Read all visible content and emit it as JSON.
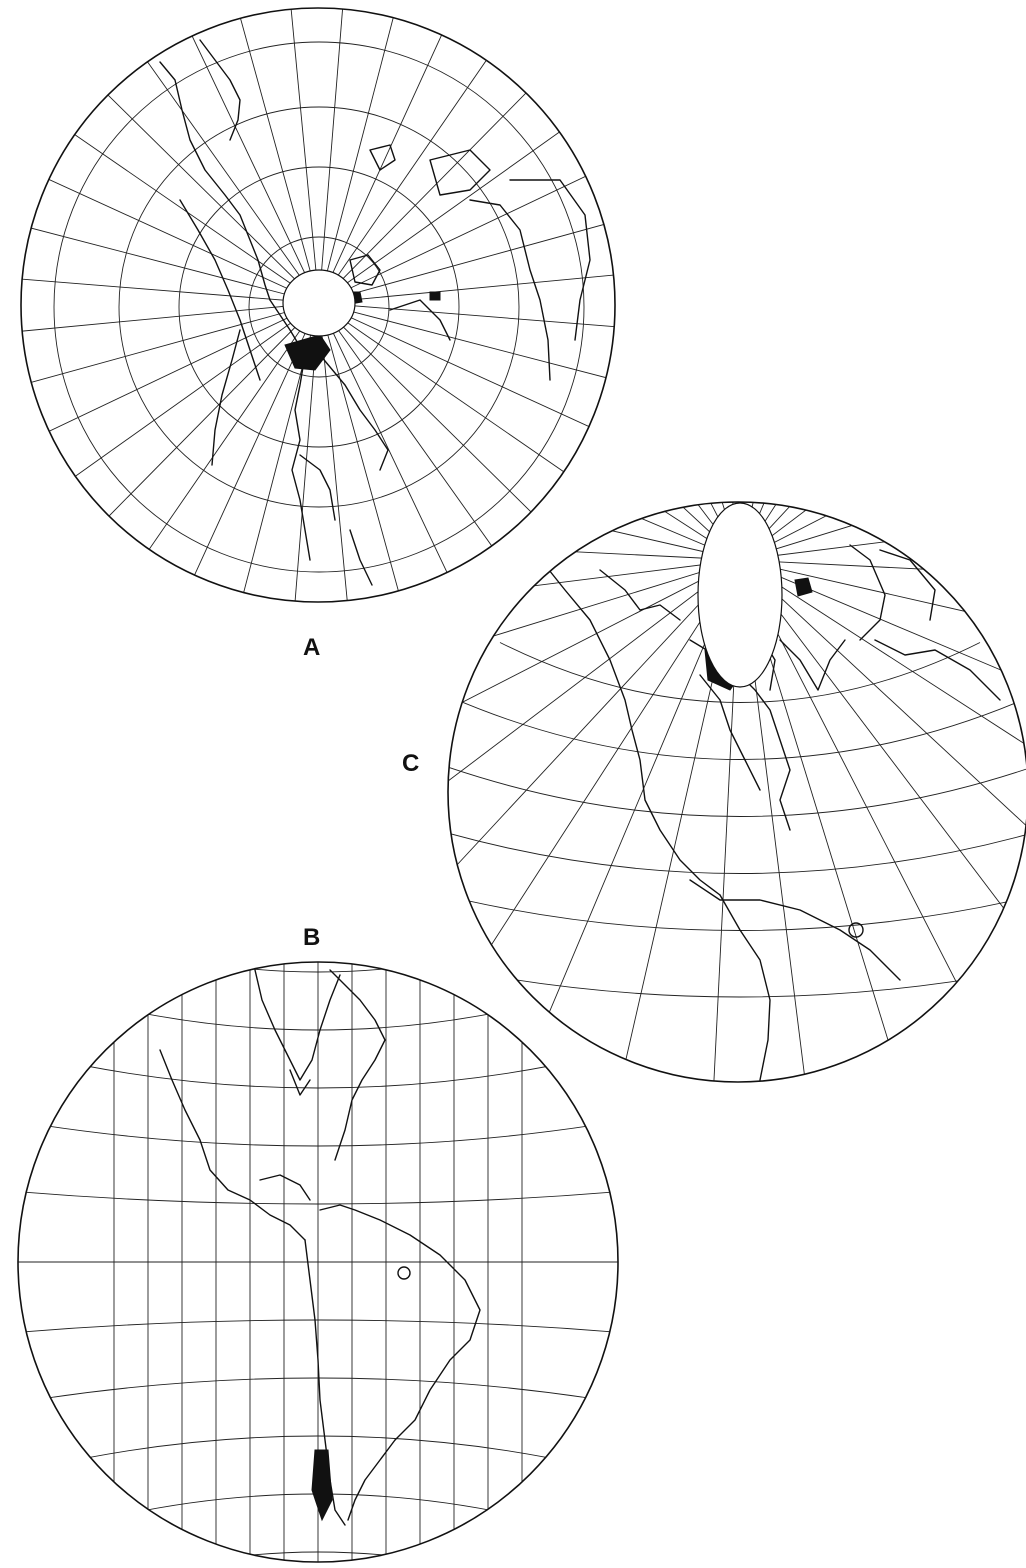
{
  "figure": {
    "panels": [
      {
        "id": "A",
        "label": "A"
      },
      {
        "id": "B",
        "label": "B"
      },
      {
        "id": "C",
        "label": "C"
      }
    ]
  },
  "colors": {
    "line": "#111111",
    "background": "#ffffff"
  }
}
